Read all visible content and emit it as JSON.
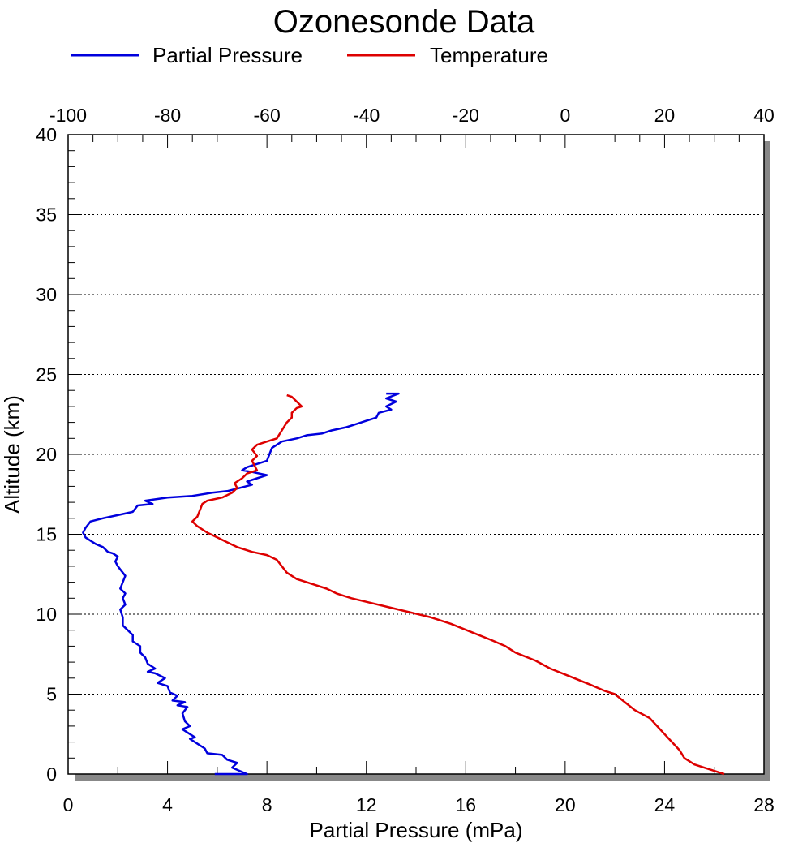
{
  "chart_data": {
    "type": "line",
    "title": "Ozonesonde Data",
    "xlabel": "Partial Pressure (mPa)",
    "ylabel": "Altitude (km)",
    "ylim": [
      0,
      40
    ],
    "xlim_bottom": [
      0,
      28
    ],
    "xlim_top": [
      -100,
      40
    ],
    "yticks": [
      0,
      5,
      10,
      15,
      20,
      25,
      30,
      35,
      40
    ],
    "xticks_bottom": [
      0,
      4,
      8,
      12,
      16,
      20,
      24,
      28
    ],
    "xticks_top": [
      -100,
      -80,
      -60,
      -40,
      -20,
      0,
      20,
      40
    ],
    "grid": "horizontal dotted",
    "legend_position": "top",
    "series": [
      {
        "name": "Partial Pressure",
        "axis": "bottom",
        "color": "#0000dd",
        "points": [
          [
            5.9,
            0.0
          ],
          [
            7.2,
            0.0
          ],
          [
            6.6,
            0.4
          ],
          [
            6.8,
            0.7
          ],
          [
            6.4,
            0.9
          ],
          [
            6.2,
            1.2
          ],
          [
            5.6,
            1.3
          ],
          [
            5.5,
            1.6
          ],
          [
            5.2,
            1.9
          ],
          [
            4.9,
            2.2
          ],
          [
            5.1,
            2.3
          ],
          [
            4.8,
            2.6
          ],
          [
            4.6,
            2.8
          ],
          [
            4.9,
            3.0
          ],
          [
            4.7,
            3.3
          ],
          [
            4.6,
            3.8
          ],
          [
            4.8,
            4.2
          ],
          [
            4.4,
            4.3
          ],
          [
            4.7,
            4.5
          ],
          [
            4.2,
            4.6
          ],
          [
            4.4,
            4.9
          ],
          [
            4.1,
            5.1
          ],
          [
            4.0,
            5.5
          ],
          [
            3.6,
            5.7
          ],
          [
            3.9,
            6.0
          ],
          [
            3.5,
            6.3
          ],
          [
            3.2,
            6.4
          ],
          [
            3.5,
            6.6
          ],
          [
            3.2,
            6.9
          ],
          [
            3.1,
            7.3
          ],
          [
            2.9,
            7.6
          ],
          [
            2.9,
            8.0
          ],
          [
            2.6,
            8.3
          ],
          [
            2.6,
            8.7
          ],
          [
            2.4,
            9.0
          ],
          [
            2.2,
            9.3
          ],
          [
            2.2,
            9.8
          ],
          [
            2.1,
            10.3
          ],
          [
            2.3,
            10.6
          ],
          [
            2.2,
            11.0
          ],
          [
            2.3,
            11.3
          ],
          [
            2.1,
            11.6
          ],
          [
            2.2,
            12.0
          ],
          [
            2.3,
            12.4
          ],
          [
            2.1,
            12.8
          ],
          [
            2.0,
            13.0
          ],
          [
            1.9,
            13.3
          ],
          [
            2.0,
            13.6
          ],
          [
            1.8,
            13.8
          ],
          [
            1.6,
            13.9
          ],
          [
            1.4,
            14.2
          ],
          [
            1.1,
            14.4
          ],
          [
            0.9,
            14.6
          ],
          [
            0.7,
            14.8
          ],
          [
            0.6,
            15.1
          ],
          [
            0.7,
            15.4
          ],
          [
            0.9,
            15.8
          ],
          [
            1.4,
            16.0
          ],
          [
            2.0,
            16.2
          ],
          [
            2.6,
            16.4
          ],
          [
            2.8,
            16.8
          ],
          [
            3.4,
            16.9
          ],
          [
            3.1,
            17.1
          ],
          [
            4.0,
            17.3
          ],
          [
            5.0,
            17.4
          ],
          [
            5.8,
            17.6
          ],
          [
            6.4,
            17.7
          ],
          [
            6.9,
            17.9
          ],
          [
            7.4,
            18.1
          ],
          [
            7.2,
            18.3
          ],
          [
            7.6,
            18.5
          ],
          [
            8.0,
            18.7
          ],
          [
            7.4,
            18.9
          ],
          [
            7.0,
            19.0
          ],
          [
            7.2,
            19.2
          ],
          [
            7.6,
            19.4
          ],
          [
            8.0,
            19.6
          ],
          [
            8.1,
            20.0
          ],
          [
            8.2,
            20.4
          ],
          [
            8.6,
            20.8
          ],
          [
            9.2,
            21.0
          ],
          [
            9.6,
            21.2
          ],
          [
            10.2,
            21.3
          ],
          [
            10.6,
            21.5
          ],
          [
            11.2,
            21.7
          ],
          [
            11.6,
            21.9
          ],
          [
            12.0,
            22.1
          ],
          [
            12.4,
            22.3
          ],
          [
            12.5,
            22.6
          ],
          [
            13.0,
            22.8
          ],
          [
            12.8,
            23.0
          ],
          [
            13.2,
            23.3
          ],
          [
            12.8,
            23.5
          ],
          [
            13.3,
            23.8
          ],
          [
            12.8,
            23.8
          ]
        ]
      },
      {
        "name": "Temperature",
        "axis": "top",
        "color": "#dd0000",
        "points": [
          [
            32.0,
            0.0
          ],
          [
            30.0,
            0.2
          ],
          [
            26.0,
            0.6
          ],
          [
            24.0,
            1.0
          ],
          [
            23.0,
            1.5
          ],
          [
            21.5,
            2.0
          ],
          [
            20.0,
            2.5
          ],
          [
            18.5,
            3.0
          ],
          [
            17.0,
            3.5
          ],
          [
            14.0,
            4.0
          ],
          [
            12.0,
            4.5
          ],
          [
            10.0,
            5.0
          ],
          [
            8.0,
            5.2
          ],
          [
            5.0,
            5.6
          ],
          [
            1.0,
            6.1
          ],
          [
            -3.0,
            6.6
          ],
          [
            -6.0,
            7.1
          ],
          [
            -10.0,
            7.6
          ],
          [
            -12.0,
            8.0
          ],
          [
            -15.0,
            8.4
          ],
          [
            -19.0,
            8.9
          ],
          [
            -23.0,
            9.4
          ],
          [
            -27.0,
            9.8
          ],
          [
            -31.0,
            10.1
          ],
          [
            -35.0,
            10.4
          ],
          [
            -39.0,
            10.7
          ],
          [
            -43.0,
            11.0
          ],
          [
            -46.0,
            11.3
          ],
          [
            -48.0,
            11.6
          ],
          [
            -51.0,
            11.9
          ],
          [
            -54.0,
            12.2
          ],
          [
            -56.0,
            12.6
          ],
          [
            -57.0,
            13.0
          ],
          [
            -58.0,
            13.4
          ],
          [
            -60.0,
            13.7
          ],
          [
            -63.0,
            13.9
          ],
          [
            -66.0,
            14.2
          ],
          [
            -68.0,
            14.5
          ],
          [
            -70.0,
            14.8
          ],
          [
            -72.0,
            15.1
          ],
          [
            -74.0,
            15.5
          ],
          [
            -75.0,
            15.8
          ],
          [
            -74.0,
            16.1
          ],
          [
            -73.5,
            16.5
          ],
          [
            -73.0,
            16.9
          ],
          [
            -72.0,
            17.1
          ],
          [
            -69.0,
            17.3
          ],
          [
            -67.0,
            17.6
          ],
          [
            -66.0,
            17.9
          ],
          [
            -66.5,
            18.2
          ],
          [
            -65.0,
            18.5
          ],
          [
            -64.0,
            18.8
          ],
          [
            -62.0,
            19.0
          ],
          [
            -62.5,
            19.3
          ],
          [
            -63.0,
            19.6
          ],
          [
            -62.0,
            19.9
          ],
          [
            -63.0,
            20.3
          ],
          [
            -62.0,
            20.6
          ],
          [
            -60.0,
            20.8
          ],
          [
            -58.0,
            21.0
          ],
          [
            -57.0,
            21.5
          ],
          [
            -56.0,
            22.0
          ],
          [
            -55.0,
            22.3
          ],
          [
            -55.0,
            22.6
          ],
          [
            -54.0,
            22.9
          ],
          [
            -53.0,
            23.0
          ],
          [
            -54.0,
            23.3
          ],
          [
            -55.0,
            23.6
          ],
          [
            -56.0,
            23.7
          ]
        ]
      }
    ]
  }
}
